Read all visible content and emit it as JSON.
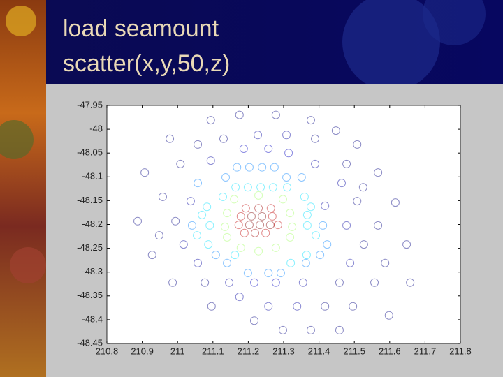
{
  "chart_data": {
    "type": "scatter",
    "title": "load seamount",
    "subtitle": "scatter(x,y,50,z)",
    "colormap": "jet",
    "xlim": [
      210.8,
      211.8
    ],
    "xticks": [
      210.8,
      210.9,
      211,
      211.1,
      211.2,
      211.3,
      211.4,
      211.5,
      211.6,
      211.7,
      211.8
    ],
    "ylim": [
      -48.45,
      -47.95
    ],
    "yticks": [
      -47.95,
      -48,
      -48.05,
      -48.1,
      -48.15,
      -48.2,
      -48.25,
      -48.3,
      -48.35,
      -48.4,
      -48.45
    ],
    "x": [
      211.175,
      211.278,
      211.094,
      211.377,
      211.448,
      210.978,
      211.227,
      211.308,
      211.13,
      211.389,
      211.057,
      211.187,
      211.257,
      211.314,
      211.508,
      211.008,
      211.094,
      211.389,
      211.478,
      210.907,
      211.567,
      211.464,
      211.525,
      210.958,
      211.037,
      211.508,
      211.417,
      211.616,
      210.887,
      210.994,
      211.478,
      211.567,
      210.948,
      211.017,
      211.527,
      211.648,
      210.928,
      211.057,
      211.488,
      211.587,
      210.986,
      211.077,
      211.146,
      211.217,
      211.278,
      211.355,
      211.458,
      211.557,
      211.658,
      211.175,
      211.096,
      211.257,
      211.338,
      211.417,
      211.496,
      211.598,
      211.217,
      211.298,
      211.377,
      211.458,
      211.168,
      211.203,
      211.239,
      211.274,
      211.136,
      211.308,
      211.351,
      211.164,
      211.199,
      211.235,
      211.27,
      211.31,
      211.057,
      211.128,
      211.359,
      211.083,
      211.377,
      211.069,
      211.367,
      211.041,
      211.091,
      211.367,
      211.411,
      211.055,
      211.391,
      211.087,
      211.423,
      211.108,
      211.162,
      211.365,
      211.403,
      211.14,
      211.32,
      211.363,
      211.199,
      211.257,
      211.292,
      211.16,
      211.298,
      211.229,
      211.14,
      211.318,
      211.14,
      211.318,
      211.179,
      211.278,
      211.229,
      211.134,
      211.324,
      211.193,
      211.229,
      211.264,
      211.179,
      211.209,
      211.239,
      211.268,
      211.173,
      211.203,
      211.233,
      211.262,
      211.284,
      211.189,
      211.219,
      211.249
    ],
    "y": [
      -47.97,
      -47.97,
      -47.981,
      -47.981,
      -48.003,
      -48.02,
      -48.012,
      -48.012,
      -48.02,
      -48.02,
      -48.032,
      -48.041,
      -48.041,
      -48.05,
      -48.032,
      -48.073,
      -48.066,
      -48.073,
      -48.073,
      -48.091,
      -48.091,
      -48.113,
      -48.122,
      -48.142,
      -48.151,
      -48.151,
      -48.161,
      -48.154,
      -48.193,
      -48.193,
      -48.202,
      -48.202,
      -48.223,
      -48.242,
      -48.242,
      -48.242,
      -48.264,
      -48.281,
      -48.281,
      -48.281,
      -48.322,
      -48.322,
      -48.322,
      -48.322,
      -48.322,
      -48.322,
      -48.322,
      -48.322,
      -48.322,
      -48.352,
      -48.372,
      -48.372,
      -48.372,
      -48.372,
      -48.372,
      -48.391,
      -48.402,
      -48.422,
      -48.422,
      -48.422,
      -48.08,
      -48.08,
      -48.08,
      -48.08,
      -48.101,
      -48.101,
      -48.101,
      -48.122,
      -48.122,
      -48.122,
      -48.122,
      -48.122,
      -48.113,
      -48.142,
      -48.142,
      -48.163,
      -48.163,
      -48.18,
      -48.18,
      -48.202,
      -48.202,
      -48.202,
      -48.202,
      -48.223,
      -48.223,
      -48.242,
      -48.242,
      -48.264,
      -48.264,
      -48.264,
      -48.264,
      -48.281,
      -48.281,
      -48.281,
      -48.302,
      -48.302,
      -48.302,
      -48.147,
      -48.147,
      -48.139,
      -48.176,
      -48.176,
      -48.227,
      -48.227,
      -48.249,
      -48.249,
      -48.256,
      -48.205,
      -48.205,
      -48.166,
      -48.166,
      -48.166,
      -48.183,
      -48.183,
      -48.183,
      -48.183,
      -48.201,
      -48.201,
      -48.201,
      -48.201,
      -48.201,
      -48.218,
      -48.218,
      -48.218
    ],
    "z": [
      -4100,
      -4100,
      -4100,
      -4100,
      -4100,
      -4100,
      -4000,
      -4000,
      -4100,
      -4100,
      -4100,
      -3900,
      -3900,
      -3900,
      -4100,
      -4100,
      -4000,
      -4000,
      -4100,
      -4100,
      -4100,
      -4000,
      -4100,
      -4100,
      -4000,
      -4100,
      -4000,
      -4100,
      -4100,
      -4100,
      -4000,
      -4100,
      -4100,
      -4000,
      -4100,
      -4100,
      -4100,
      -4000,
      -4000,
      -4100,
      -4100,
      -4100,
      -4000,
      -3900,
      -3900,
      -4000,
      -4100,
      -4100,
      -4100,
      -4000,
      -4100,
      -4000,
      -4000,
      -4100,
      -4100,
      -4100,
      -4100,
      -4100,
      -4100,
      -4100,
      -3300,
      -3300,
      -3300,
      -3300,
      -3300,
      -3300,
      -3300,
      -3000,
      -3000,
      -3000,
      -3000,
      -3000,
      -3300,
      -3000,
      -3000,
      -3000,
      -3000,
      -3000,
      -3000,
      -3300,
      -3000,
      -3000,
      -3300,
      -3000,
      -3000,
      -3000,
      -3300,
      -3300,
      -3000,
      -3000,
      -3300,
      -3300,
      -3000,
      -3300,
      -3300,
      -3300,
      -3300,
      -2400,
      -2400,
      -2400,
      -2400,
      -2400,
      -2400,
      -2400,
      -2400,
      -2400,
      -2400,
      -2400,
      -2400,
      -1100,
      -1000,
      -1100,
      -1100,
      -900,
      -900,
      -1100,
      -1100,
      -900,
      -900,
      -900,
      -1100,
      -1100,
      -1000,
      -1100
    ]
  }
}
